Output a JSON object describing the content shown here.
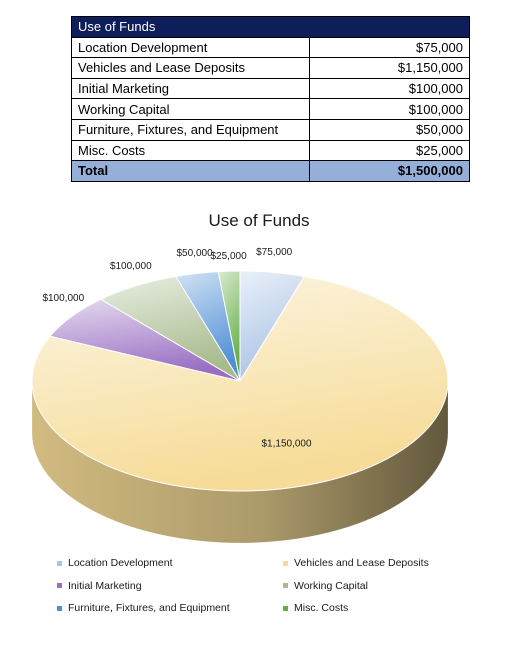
{
  "table": {
    "header": "Use of Funds",
    "rows": [
      {
        "label": "Location Development",
        "amount": "$75,000"
      },
      {
        "label": "Vehicles and Lease Deposits",
        "amount": "$1,150,000"
      },
      {
        "label": "Initial Marketing",
        "amount": "$100,000"
      },
      {
        "label": "Working Capital",
        "amount": "$100,000"
      },
      {
        "label": "Furniture, Fixtures, and Equipment",
        "amount": "$50,000"
      },
      {
        "label": "Misc. Costs",
        "amount": "$25,000"
      }
    ],
    "total": {
      "label": "Total",
      "amount": "$1,500,000"
    }
  },
  "chart_data": {
    "type": "pie",
    "style": "3d",
    "title": "Use of Funds",
    "categories": [
      "Location Development",
      "Vehicles and Lease Deposits",
      "Initial Marketing",
      "Working Capital",
      "Furniture, Fixtures, and Equipment",
      "Misc. Costs"
    ],
    "values": [
      75000,
      1150000,
      100000,
      100000,
      50000,
      25000
    ],
    "data_labels": [
      "$75,000",
      "$1,150,000",
      "$100,000",
      "$100,000",
      "$50,000",
      "$25,000"
    ],
    "colors": [
      "#a9c3e6",
      "#f6dc98",
      "#9a6fc2",
      "#a8bb8e",
      "#4f8fd6",
      "#66ad46"
    ],
    "legend_position": "bottom"
  }
}
